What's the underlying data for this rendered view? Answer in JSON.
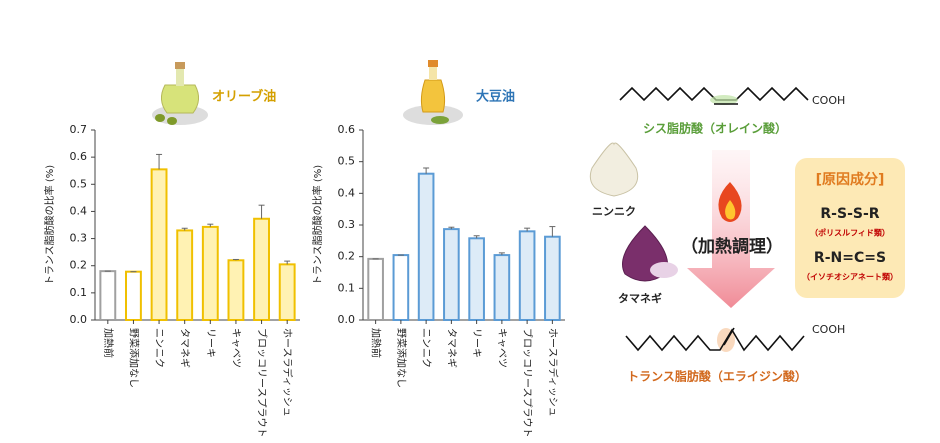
{
  "chart_data": [
    {
      "type": "bar",
      "title": "オリーブ油",
      "title_color": "#d4a000",
      "ylabel": "トランス脂肪酸の比率 (%)",
      "categories": [
        "加熱前",
        "野菜添加なし",
        "ニンニク",
        "タマネギ",
        "リーキ",
        "キャベツ",
        "ブロッコリースプラウト",
        "ホースラディッシュ"
      ],
      "values": [
        0.18,
        0.178,
        0.555,
        0.33,
        0.343,
        0.22,
        0.373,
        0.205
      ],
      "errors": [
        0,
        0,
        0.055,
        0.008,
        0.01,
        0.003,
        0.05,
        0.012
      ],
      "edgecolors": [
        "#a0a0a0",
        "#f0c000",
        "#f0c000",
        "#f0c000",
        "#f0c000",
        "#f0c000",
        "#f0c000",
        "#f0c000"
      ],
      "fillcolors": [
        "#ffffff",
        "#ffffff",
        "#fff2b3",
        "#fff2b3",
        "#fff2b3",
        "#fff2b3",
        "#fff2b3",
        "#fff2b3"
      ],
      "ylim": [
        0,
        0.7
      ],
      "yticks": [
        {
          "value": 0,
          "label": "0.0"
        },
        0.1,
        0.2,
        0.3,
        0.4,
        0.5,
        0.6,
        0.7
      ]
    },
    {
      "type": "bar",
      "title": "大豆油",
      "title_color": "#2e75b6",
      "ylabel": "トランス脂肪酸の比率 (%)",
      "categories": [
        "加熱前",
        "野菜添加なし",
        "ニンニク",
        "タマネギ",
        "リーキ",
        "キャベツ",
        "ブロッコリースプラウト",
        "ホースラディッシュ"
      ],
      "values": [
        0.193,
        0.205,
        0.462,
        0.287,
        0.258,
        0.205,
        0.28,
        0.263
      ],
      "errors": [
        0,
        0,
        0.018,
        0.006,
        0.008,
        0.007,
        0.01,
        0.032
      ],
      "edgecolors": [
        "#a0a0a0",
        "#5b9bd5",
        "#5b9bd5",
        "#5b9bd5",
        "#5b9bd5",
        "#5b9bd5",
        "#5b9bd5",
        "#5b9bd5"
      ],
      "fillcolors": [
        "#ffffff",
        "#ffffff",
        "#ddebf7",
        "#ddebf7",
        "#ddebf7",
        "#ddebf7",
        "#ddebf7",
        "#ddebf7"
      ],
      "ylim": [
        0,
        0.6
      ],
      "yticks": [
        {
          "value": 0,
          "label": "0.0"
        },
        0.1,
        0.2,
        0.3,
        0.4,
        0.5,
        0.6
      ]
    }
  ],
  "diagram": {
    "cis_cooh": "COOH",
    "cis_label": "シス脂肪酸（オレイン酸）",
    "garlic": "ニンニク",
    "onion": "タマネギ",
    "cooking": "（加熱調理）",
    "cause_title": "[原因成分]",
    "formula1": "R-S-S-R",
    "formula1_note": "（ポリスルフィド類）",
    "formula2": "R-N=C=S",
    "formula2_note": "（イソチオシアネート類）",
    "trans_cooh": "COOH",
    "trans_label": "トランス脂肪酸（エライジン酸）"
  }
}
